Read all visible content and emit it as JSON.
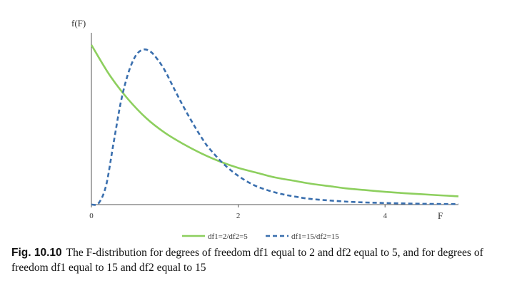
{
  "chart_data": {
    "type": "line",
    "ylabel": "f(F)",
    "xlabel": "F",
    "xlim": [
      0,
      5
    ],
    "x_ticks": [
      0,
      2,
      4
    ],
    "grid": false,
    "legend_position": "bottom-center",
    "series": [
      {
        "name": "df1=2/df2=5",
        "color": "#8dcf5e",
        "style": "solid",
        "x": [
          0,
          0.25,
          0.5,
          0.75,
          1,
          1.25,
          1.5,
          1.75,
          2,
          2.25,
          2.5,
          2.75,
          3,
          3.25,
          3.5,
          3.75,
          4,
          4.25,
          4.5,
          4.75,
          5
        ],
        "y": [
          1.0,
          0.81,
          0.66,
          0.54,
          0.45,
          0.38,
          0.32,
          0.27,
          0.23,
          0.2,
          0.17,
          0.15,
          0.13,
          0.115,
          0.1,
          0.09,
          0.08,
          0.072,
          0.065,
          0.058,
          0.052
        ]
      },
      {
        "name": "df1=15/df2=15",
        "color": "#3a6fae",
        "style": "dashed",
        "x": [
          0,
          0.1,
          0.2,
          0.3,
          0.4,
          0.5,
          0.6,
          0.7,
          0.8,
          0.9,
          1.0,
          1.1,
          1.2,
          1.3,
          1.4,
          1.5,
          1.6,
          1.8,
          2.0,
          2.2,
          2.4,
          2.6,
          2.8,
          3.0,
          3.5,
          4.0,
          4.5,
          5.0
        ],
        "y": [
          0,
          0.01,
          0.12,
          0.38,
          0.64,
          0.82,
          0.93,
          0.97,
          0.96,
          0.91,
          0.84,
          0.75,
          0.66,
          0.575,
          0.495,
          0.42,
          0.355,
          0.255,
          0.18,
          0.125,
          0.09,
          0.065,
          0.048,
          0.035,
          0.018,
          0.01,
          0.005,
          0.003
        ]
      }
    ]
  },
  "caption": {
    "figure_label": "Fig. 10.10",
    "text": "The F-distribution for degrees of freedom df1 equal to 2 and df2 equal to 5, and for degrees of freedom df1 equal to 15 and df2 equal to 15"
  }
}
